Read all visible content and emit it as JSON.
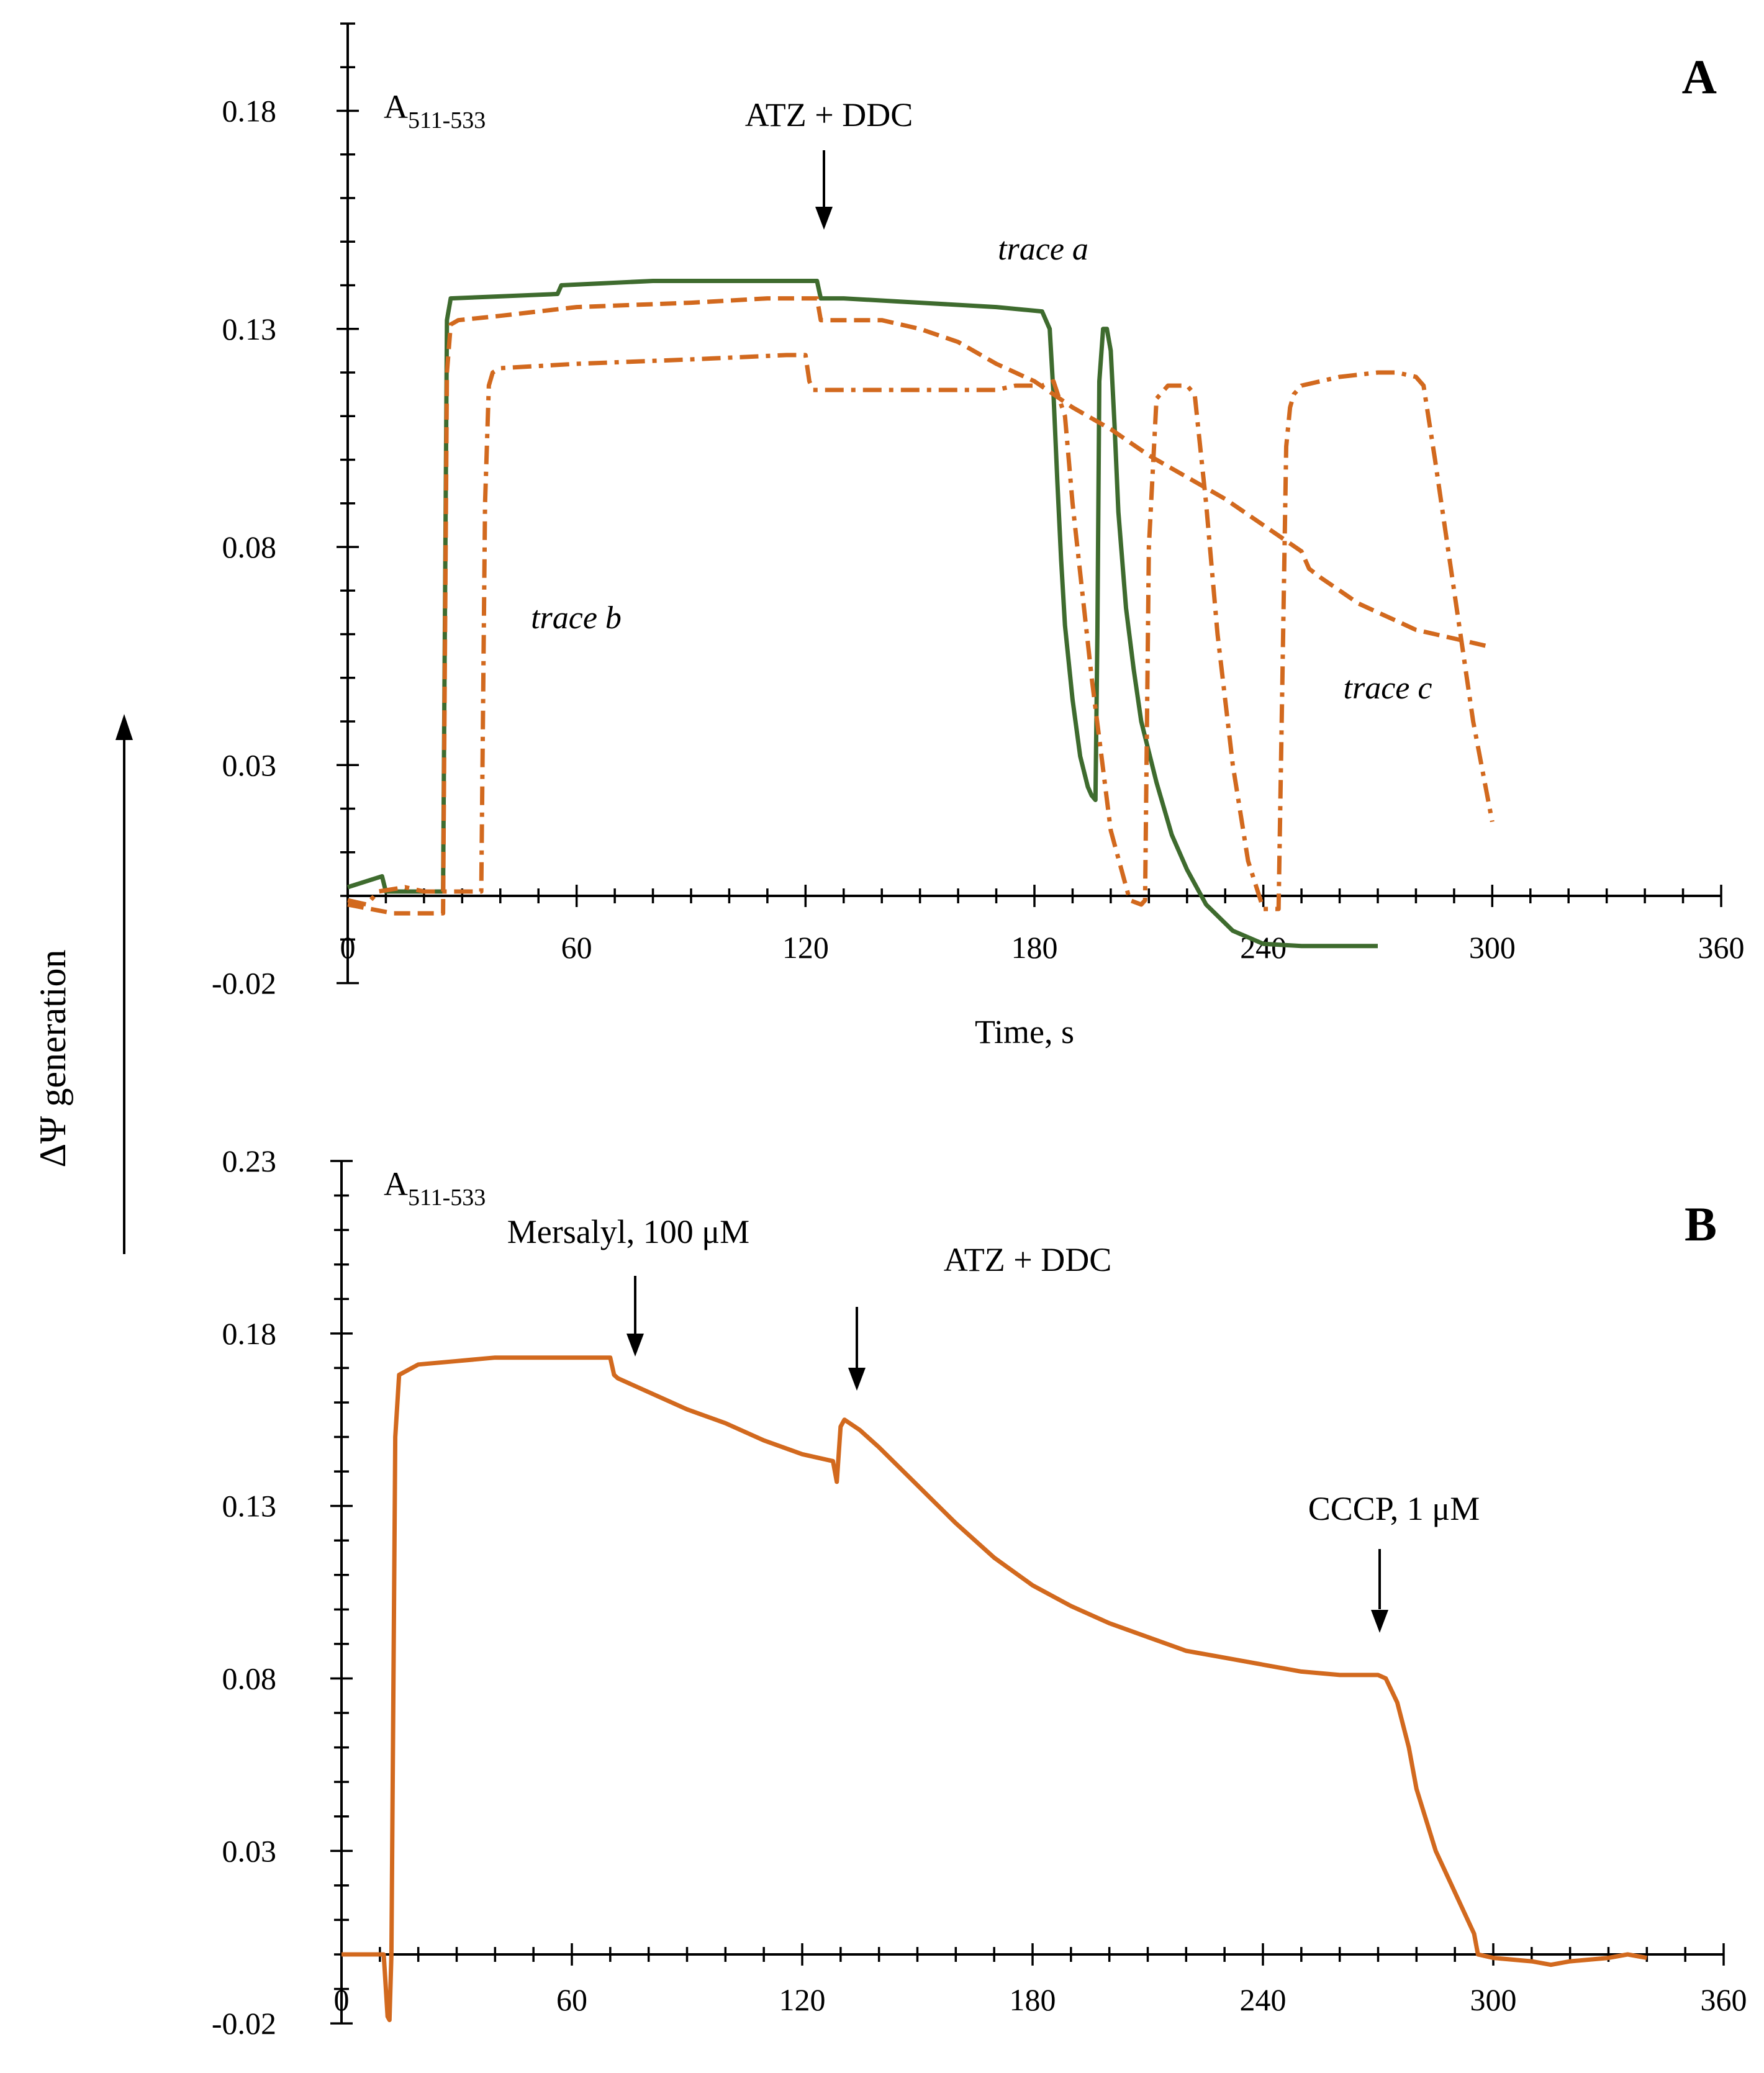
{
  "colors": {
    "green": "#3e6b2e",
    "orange": "#d2691e",
    "axis": "#000000"
  },
  "ylabel_vertical": "ΔΨ generation",
  "chart_data": [
    {
      "panel": "A",
      "type": "line",
      "ylabel": "A511-533",
      "ylabel_main": "A",
      "ylabel_sub": "511-533",
      "xlabel": "Time, s",
      "xlim": [
        0,
        360
      ],
      "ylim": [
        -0.02,
        0.2
      ],
      "xticks": [
        0,
        60,
        120,
        180,
        240,
        300,
        360
      ],
      "xtick_labels": [
        "0",
        "60",
        "120",
        "180",
        "240",
        "300",
        "360"
      ],
      "yticks": [
        -0.02,
        0.03,
        0.08,
        0.13,
        0.18
      ],
      "ytick_labels": [
        "-0.02",
        "0.03",
        "0.08",
        "0.13",
        "0.18"
      ],
      "annotations": [
        {
          "text": "ATZ + DDC",
          "x": 124,
          "arrow": true
        },
        {
          "text": "trace a"
        },
        {
          "text": "trace b"
        },
        {
          "text": "trace c"
        }
      ],
      "series": [
        {
          "label": "trace a",
          "style": "solid",
          "color": "#3e6b2e",
          "x": [
            0,
            9,
            10,
            13,
            25,
            26,
            27,
            55,
            56,
            80,
            110,
            123,
            124,
            130,
            150,
            170,
            182,
            184,
            185,
            186,
            187,
            188,
            190,
            192,
            194,
            195,
            196,
            196.5,
            197,
            198,
            199,
            200,
            201,
            202,
            204,
            206,
            208,
            212,
            216,
            220,
            225,
            232,
            240,
            250,
            260,
            270
          ],
          "y": [
            0.002,
            0.0045,
            0.001,
            0.001,
            0.001,
            0.132,
            0.137,
            0.138,
            0.14,
            0.141,
            0.141,
            0.141,
            0.137,
            0.137,
            0.136,
            0.135,
            0.134,
            0.13,
            0.115,
            0.095,
            0.077,
            0.062,
            0.045,
            0.032,
            0.025,
            0.023,
            0.022,
            0.06,
            0.118,
            0.13,
            0.13,
            0.125,
            0.108,
            0.088,
            0.066,
            0.052,
            0.04,
            0.026,
            0.014,
            0.006,
            -0.002,
            -0.008,
            -0.011,
            -0.0115,
            -0.0115,
            -0.0115
          ]
        },
        {
          "label": "trace b",
          "style": "dashed",
          "color": "#d2691e",
          "x": [
            0,
            6,
            12,
            25,
            26,
            27,
            29,
            40,
            60,
            90,
            110,
            123,
            124,
            140,
            150,
            160,
            170,
            180,
            190,
            200,
            210,
            220,
            230,
            240,
            250,
            252,
            255,
            260,
            265,
            270,
            275,
            280,
            285,
            290,
            295,
            300
          ],
          "y": [
            -0.002,
            -0.003,
            -0.004,
            -0.004,
            0.12,
            0.131,
            0.132,
            0.133,
            0.135,
            0.136,
            0.137,
            0.137,
            0.132,
            0.132,
            0.13,
            0.127,
            0.122,
            0.118,
            0.112,
            0.107,
            0.101,
            0.096,
            0.091,
            0.085,
            0.079,
            0.075,
            0.073,
            0.07,
            0.067,
            0.065,
            0.063,
            0.061,
            0.06,
            0.059,
            0.058,
            0.057
          ]
        },
        {
          "label": "trace c",
          "style": "dashdot",
          "color": "#d2691e",
          "x": [
            0,
            5,
            8,
            15,
            20,
            30,
            35,
            36,
            37,
            38,
            40,
            60,
            90,
            115,
            120,
            121,
            122,
            130,
            150,
            160,
            170,
            175,
            178,
            180,
            182,
            185,
            188,
            190,
            195,
            200,
            205,
            208,
            209,
            210,
            212,
            215,
            220,
            222,
            225,
            228,
            232,
            236,
            240,
            243,
            244,
            245,
            246,
            247,
            248,
            250,
            255,
            260,
            270,
            275,
            280,
            282,
            285,
            290,
            295,
            300
          ],
          "y": [
            -0.001,
            -0.002,
            0.001,
            0.002,
            0.001,
            0.001,
            0.001,
            0.09,
            0.117,
            0.12,
            0.121,
            0.122,
            0.123,
            0.124,
            0.124,
            0.118,
            0.116,
            0.116,
            0.116,
            0.116,
            0.116,
            0.117,
            0.117,
            0.117,
            0.117,
            0.118,
            0.11,
            0.09,
            0.05,
            0.015,
            -0.001,
            -0.002,
            -0.001,
            0.08,
            0.114,
            0.117,
            0.117,
            0.115,
            0.09,
            0.06,
            0.03,
            0.008,
            -0.003,
            -0.003,
            -0.003,
            0.05,
            0.103,
            0.112,
            0.115,
            0.117,
            0.118,
            0.119,
            0.12,
            0.12,
            0.119,
            0.117,
            0.1,
            0.07,
            0.04,
            0.017
          ]
        }
      ]
    },
    {
      "panel": "B",
      "type": "line",
      "ylabel": "A511-533",
      "ylabel_main": "A",
      "ylabel_sub": "511-533",
      "xlabel": "",
      "xlim": [
        0,
        360
      ],
      "ylim": [
        -0.02,
        0.23
      ],
      "xticks": [
        0,
        60,
        120,
        180,
        240,
        300,
        360
      ],
      "xtick_labels": [
        "0",
        "60",
        "120",
        "180",
        "240",
        "300",
        "360"
      ],
      "yticks": [
        -0.02,
        0.03,
        0.08,
        0.13,
        0.18,
        0.23
      ],
      "ytick_labels": [
        "-0.02",
        "0.03",
        "0.08",
        "0.13",
        "0.18",
        "0.23"
      ],
      "annotations": [
        {
          "text": "Mersalyl, 100 μM",
          "x": 77,
          "arrow": true
        },
        {
          "text": "ATZ + DDC",
          "x": 134,
          "arrow": true
        },
        {
          "text": "CCCP, 1 μM",
          "x": 272,
          "arrow": true
        }
      ],
      "series": [
        {
          "label": "",
          "style": "solid",
          "color": "#d2691e",
          "x": [
            0,
            10,
            11,
            12,
            12.5,
            13,
            14,
            15,
            20,
            30,
            40,
            50,
            60,
            70,
            71,
            72,
            80,
            90,
            100,
            110,
            120,
            128,
            129,
            130,
            131,
            135,
            140,
            150,
            160,
            170,
            180,
            190,
            200,
            210,
            220,
            230,
            240,
            250,
            260,
            265,
            268,
            270,
            272,
            275,
            278,
            280,
            285,
            290,
            295,
            296,
            300,
            310,
            315,
            320,
            330,
            335,
            340
          ],
          "y": [
            0.0,
            0.0,
            0.0,
            -0.018,
            -0.019,
            0.0,
            0.15,
            0.168,
            0.171,
            0.172,
            0.173,
            0.173,
            0.173,
            0.173,
            0.168,
            0.167,
            0.163,
            0.158,
            0.154,
            0.149,
            0.145,
            0.143,
            0.137,
            0.153,
            0.155,
            0.152,
            0.147,
            0.136,
            0.125,
            0.115,
            0.107,
            0.101,
            0.096,
            0.092,
            0.088,
            0.086,
            0.084,
            0.082,
            0.081,
            0.081,
            0.081,
            0.081,
            0.08,
            0.073,
            0.06,
            0.048,
            0.03,
            0.018,
            0.006,
            0.0,
            -0.001,
            -0.002,
            -0.003,
            -0.002,
            -0.001,
            0.0,
            -0.001
          ]
        }
      ]
    }
  ]
}
